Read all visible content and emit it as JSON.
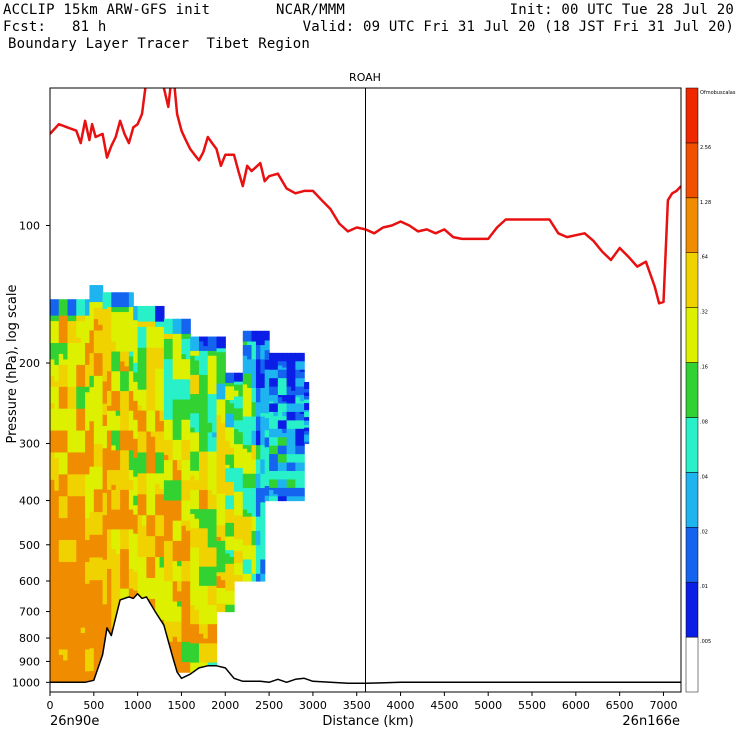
{
  "header": {
    "model": "ACCLIP 15km ARW-GFS init",
    "org": "NCAR/MMM",
    "init": "Init: 00 UTC Tue 28 Jul 20",
    "fcst": "Fcst:   81 h",
    "valid": "Valid: 09 UTC Fri 31 Jul 20 (18 JST Fri 31 Jul 20)",
    "subtitle": "Boundary Layer Tracer  Tibet Region"
  },
  "chart_data": {
    "type": "heatmap",
    "title": "ROAH",
    "xlabel": "Distance (km)",
    "ylabel": "Pressure (hPa), log scale",
    "xlim": [
      0,
      7200
    ],
    "ylim_hpa": [
      1050,
      50
    ],
    "x_ticks": [
      0,
      500,
      1000,
      1500,
      2000,
      2500,
      3000,
      3500,
      4000,
      4500,
      5000,
      5500,
      6000,
      6500,
      7000
    ],
    "y_ticks": [
      100,
      200,
      300,
      400,
      500,
      600,
      700,
      800,
      900,
      1000
    ],
    "start_label": "26n90e",
    "end_label": "26n166e",
    "marker_x_km": 3600,
    "colorbar": {
      "levels": [
        "0",
        ".005",
        ".01",
        ".02",
        ".04",
        ".08",
        ".16",
        ".32",
        ".64",
        "1.28",
        "2.56",
        "Ofmobuscalas"
      ],
      "colors": [
        "#ffffff",
        "#0a1ee6",
        "#1464f0",
        "#1eb4f0",
        "#28f0c8",
        "#32d232",
        "#dcf000",
        "#f0d200",
        "#f08c00",
        "#f05000",
        "#f02800"
      ]
    },
    "series": [
      {
        "name": "tropopause",
        "color": "#e81010",
        "x": [
          0,
          100,
          200,
          300,
          350,
          400,
          450,
          480,
          520,
          600,
          650,
          700,
          750,
          800,
          850,
          900,
          950,
          1000,
          1050,
          1100,
          1200,
          1300,
          1350,
          1400,
          1450,
          1500,
          1550,
          1600,
          1650,
          1700,
          1750,
          1800,
          1850,
          1900,
          1950,
          2000,
          2100,
          2150,
          2200,
          2250,
          2300,
          2400,
          2450,
          2500,
          2600,
          2700,
          2800,
          2900,
          3000,
          3100,
          3200,
          3300,
          3400,
          3500,
          3600,
          3700,
          3800,
          3900,
          4000,
          4100,
          4200,
          4300,
          4400,
          4500,
          4600,
          4700,
          4800,
          4900,
          5000,
          5100,
          5200,
          5300,
          5400,
          5500,
          5600,
          5700,
          5800,
          5900,
          6000,
          6100,
          6200,
          6300,
          6400,
          6500,
          6600,
          6700,
          6800,
          6900,
          6950,
          7000,
          7050,
          7100,
          7150,
          7200
        ],
        "y": [
          63,
          60,
          61,
          62,
          66,
          59,
          65,
          60,
          64,
          63,
          71,
          67,
          64,
          59,
          63,
          66,
          61,
          60,
          57,
          48,
          46,
          50,
          55,
          45,
          57,
          62,
          65,
          68,
          70,
          72,
          69,
          64,
          66,
          68,
          74,
          70,
          70,
          76,
          82,
          74,
          76,
          73,
          80,
          78,
          77,
          83,
          85,
          84,
          84,
          88,
          92,
          99,
          103,
          101,
          102,
          104,
          101,
          100,
          98,
          100,
          103,
          102,
          104,
          102,
          106,
          107,
          107,
          107,
          107,
          101,
          97,
          97,
          97,
          97,
          97,
          97,
          104,
          106,
          105,
          104,
          108,
          114,
          119,
          112,
          117,
          123,
          120,
          136,
          148,
          147,
          88,
          85,
          84,
          82
        ]
      },
      {
        "name": "terrain",
        "color": "#000000",
        "x": [
          0,
          200,
          400,
          500,
          600,
          650,
          700,
          800,
          900,
          950,
          1000,
          1050,
          1100,
          1200,
          1300,
          1400,
          1450,
          1500,
          1600,
          1700,
          1800,
          1900,
          2000,
          2100,
          2200,
          2400,
          2500,
          2600,
          2700,
          2800,
          2900,
          3000,
          3200,
          3400,
          3600,
          4000,
          5000,
          6000,
          7000,
          7200
        ],
        "y": [
          1000,
          1000,
          1000,
          990,
          870,
          760,
          790,
          660,
          650,
          655,
          640,
          655,
          650,
          700,
          750,
          880,
          950,
          980,
          960,
          930,
          920,
          920,
          930,
          980,
          995,
          995,
          1000,
          985,
          1000,
          985,
          980,
          995,
          1000,
          1005,
          1005,
          1000,
          1000,
          1000,
          1000,
          1000
        ]
      }
    ]
  }
}
